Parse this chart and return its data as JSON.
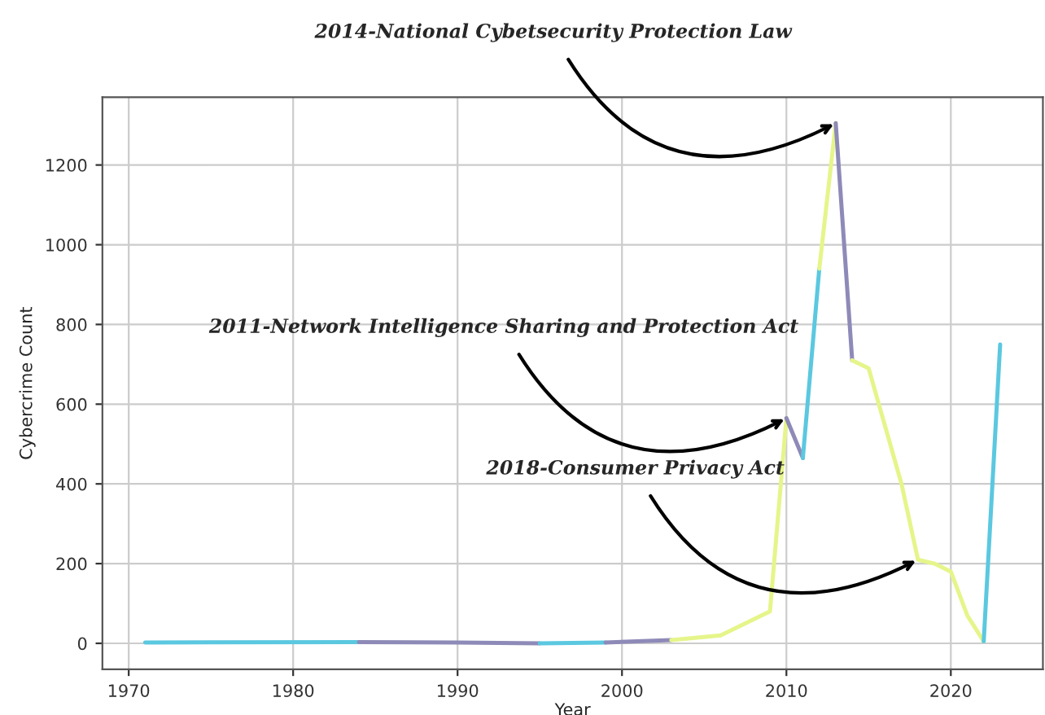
{
  "chart_data": {
    "type": "line",
    "xlabel": "Year",
    "ylabel": "Cybercrime Count",
    "series": [
      {
        "color": "#5bc8e0",
        "x": [
          1971,
          1984
        ],
        "values": [
          2,
          3
        ]
      },
      {
        "color": "#8e8ab8",
        "x": [
          1984,
          1990,
          1995
        ],
        "values": [
          3,
          2,
          0
        ]
      },
      {
        "color": "#5bc8e0",
        "x": [
          1995,
          1999
        ],
        "values": [
          0,
          2
        ]
      },
      {
        "color": "#8e8ab8",
        "x": [
          1999,
          2003
        ],
        "values": [
          2,
          8
        ]
      },
      {
        "color": "#e6f58a",
        "x": [
          2003,
          2006,
          2009,
          2010
        ],
        "values": [
          8,
          20,
          80,
          565
        ]
      },
      {
        "color": "#8e8ab8",
        "x": [
          2010,
          2011
        ],
        "values": [
          565,
          465
        ]
      },
      {
        "color": "#5bc8e0",
        "x": [
          2011,
          2012
        ],
        "values": [
          465,
          940
        ]
      },
      {
        "color": "#e6f58a",
        "x": [
          2012,
          2013
        ],
        "values": [
          940,
          1305
        ]
      },
      {
        "color": "#8e8ab8",
        "x": [
          2013,
          2014
        ],
        "values": [
          1305,
          710
        ]
      },
      {
        "color": "#e6f58a",
        "x": [
          2014,
          2015,
          2017,
          2018,
          2019,
          2020,
          2021,
          2022
        ],
        "values": [
          710,
          690,
          400,
          210,
          200,
          180,
          70,
          5
        ]
      },
      {
        "color": "#5bc8e0",
        "x": [
          2022,
          2023
        ],
        "values": [
          5,
          750
        ]
      }
    ],
    "annotations": [
      {
        "text": "2014-National Cybetsecurity Protection Law",
        "x": 2013,
        "y": 1305
      },
      {
        "text": "2011-Network Intelligence Sharing and Protection Act",
        "x": 2010,
        "y": 565
      },
      {
        "text": "2018-Consumer Privacy Act",
        "x": 2018,
        "y": 210
      }
    ],
    "xlim": [
      1968.4,
      2025.6
    ],
    "ylim": [
      -65,
      1370
    ],
    "xticks": [
      1970,
      1980,
      1990,
      2000,
      2010,
      2020
    ],
    "yticks": [
      0,
      200,
      400,
      600,
      800,
      1000,
      1200
    ],
    "grid": true,
    "line_style": "solid",
    "marker": "none"
  }
}
